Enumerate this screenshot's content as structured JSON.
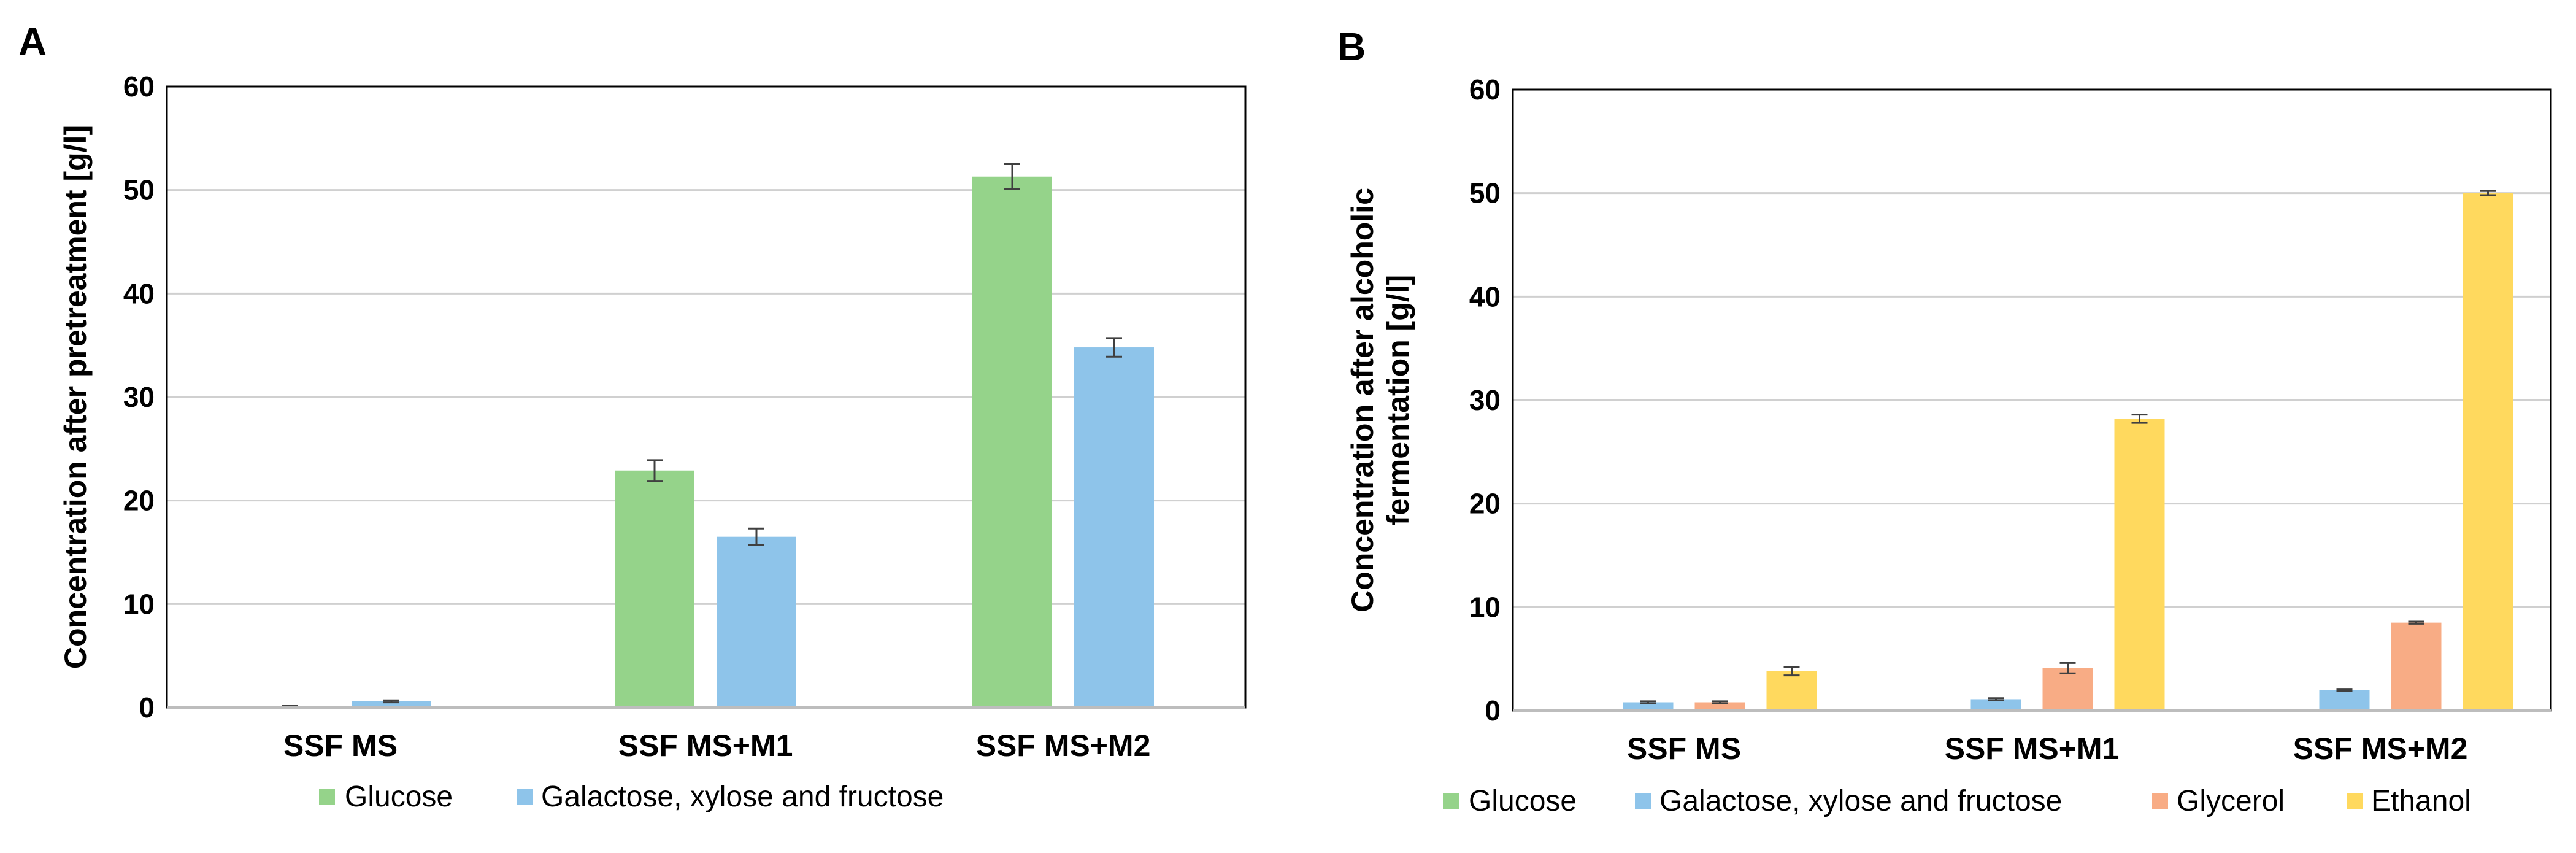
{
  "colors": {
    "glucose": "#95d38a",
    "gxf": "#8ec4ea",
    "glycerol": "#f8ac85",
    "ethanol": "#ffd95e",
    "grid": "#d0d0d0",
    "errorbar": "#404040"
  },
  "chart_data": [
    {
      "panel": "A",
      "type": "bar",
      "categories": [
        "SSF MS",
        "SSF MS+M1",
        "SSF MS+M2"
      ],
      "series": [
        {
          "name": "Glucose",
          "color_key": "glucose",
          "values": [
            0.1,
            22.9,
            51.3
          ],
          "errors": [
            0.05,
            1.0,
            1.2
          ]
        },
        {
          "name": "Galactose, xylose and fructose",
          "color_key": "gxf",
          "values": [
            0.6,
            16.5,
            34.8
          ],
          "errors": [
            0.1,
            0.8,
            0.9
          ]
        }
      ],
      "ylabel": "Concentration after pretreatment [g/l]",
      "ylabel_lines": [
        "Concentration after pretreatment [g/l]"
      ],
      "ylim": [
        0,
        60
      ],
      "yticks": [
        0,
        10,
        20,
        30,
        40,
        50,
        60
      ],
      "grid": true,
      "legend": "bottom"
    },
    {
      "panel": "B",
      "type": "bar",
      "categories": [
        "SSF MS",
        "SSF MS+M1",
        "SSF MS+M2"
      ],
      "series": [
        {
          "name": "Glucose",
          "color_key": "glucose",
          "values": [
            0,
            0,
            0
          ],
          "errors": [
            0,
            0,
            0
          ]
        },
        {
          "name": "Galactose, xylose and fructose",
          "color_key": "gxf",
          "values": [
            0.8,
            1.1,
            2.0
          ],
          "errors": [
            0.1,
            0.1,
            0.1
          ]
        },
        {
          "name": "Glycerol",
          "color_key": "glycerol",
          "values": [
            0.8,
            4.1,
            8.5
          ],
          "errors": [
            0.1,
            0.5,
            0.1
          ]
        },
        {
          "name": "Ethanol",
          "color_key": "ethanol",
          "values": [
            3.8,
            28.2,
            50.0
          ],
          "errors": [
            0.4,
            0.4,
            0.2
          ]
        }
      ],
      "ylabel": "Concentration after alcoholic fermentation [g/l]",
      "ylabel_lines": [
        "Concentration after alcoholic",
        "fermentation [g/l]"
      ],
      "ylim": [
        0,
        60
      ],
      "yticks": [
        0,
        10,
        20,
        30,
        40,
        50,
        60
      ],
      "grid": true,
      "legend": "bottom"
    }
  ]
}
